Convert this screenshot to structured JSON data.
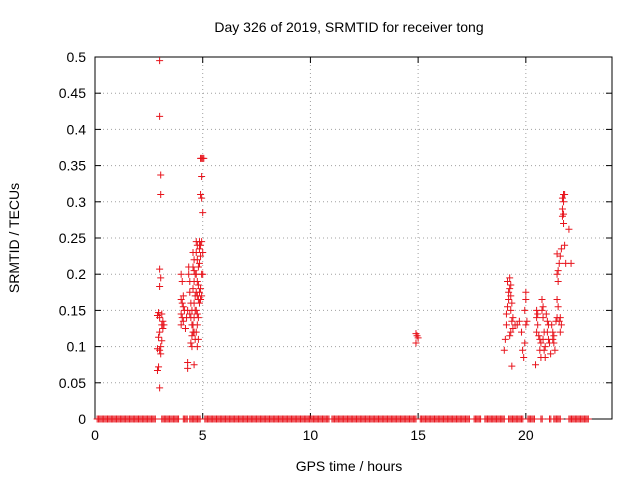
{
  "chart_data": {
    "type": "scatter",
    "title": "Day 326 of 2019, SRMTID for receiver tong",
    "xlabel": "GPS time / hours",
    "ylabel": "SRMTID / TECUs",
    "xlim": [
      0,
      24
    ],
    "ylim": [
      0,
      0.5
    ],
    "xticks": [
      0,
      5,
      10,
      15,
      20
    ],
    "xtick_labels": [
      "0",
      "5",
      "10",
      "15",
      "20"
    ],
    "yticks": [
      0,
      0.05,
      0.1,
      0.15,
      0.2,
      0.25,
      0.3,
      0.35,
      0.4,
      0.45,
      0.5
    ],
    "ytick_labels": [
      "0",
      "0.05",
      "0.1",
      "0.15",
      "0.2",
      "0.25",
      "0.3",
      "0.35",
      "0.4",
      "0.45",
      "0.5"
    ],
    "grid": true,
    "marker": "+",
    "marker_color": "#e8141c",
    "zero_segments": [
      [
        0.1,
        2.8
      ],
      [
        3.1,
        3.9
      ],
      [
        4.1,
        4.3
      ],
      [
        4.4,
        4.9
      ],
      [
        5.1,
        10.9
      ],
      [
        11.0,
        14.9
      ],
      [
        15.1,
        17.4
      ],
      [
        17.6,
        17.9
      ],
      [
        18.1,
        19.0
      ],
      [
        19.2,
        19.9
      ],
      [
        20.1,
        20.4
      ],
      [
        20.7,
        20.8
      ],
      [
        21.1,
        21.2
      ],
      [
        21.3,
        21.6
      ],
      [
        22.0,
        22.9
      ]
    ],
    "zero_step": 0.06,
    "series": [
      {
        "name": "SRMTID",
        "points": [
          [
            3.0,
            0.495
          ],
          [
            3.0,
            0.418
          ],
          [
            3.05,
            0.337
          ],
          [
            3.05,
            0.31
          ],
          [
            3.0,
            0.207
          ],
          [
            3.05,
            0.195
          ],
          [
            3.0,
            0.183
          ],
          [
            2.95,
            0.147
          ],
          [
            2.9,
            0.143
          ],
          [
            3.0,
            0.14
          ],
          [
            3.1,
            0.13
          ],
          [
            3.15,
            0.125
          ],
          [
            3.0,
            0.12
          ],
          [
            2.95,
            0.113
          ],
          [
            3.1,
            0.108
          ],
          [
            3.05,
            0.1
          ],
          [
            2.9,
            0.097
          ],
          [
            3.0,
            0.095
          ],
          [
            3.05,
            0.09
          ],
          [
            2.95,
            0.072
          ],
          [
            2.9,
            0.067
          ],
          [
            3.0,
            0.043
          ],
          [
            3.1,
            0.145
          ],
          [
            3.15,
            0.135
          ],
          [
            3.2,
            0.13
          ],
          [
            4.0,
            0.2
          ],
          [
            4.05,
            0.19
          ],
          [
            4.1,
            0.17
          ],
          [
            4.0,
            0.165
          ],
          [
            4.05,
            0.16
          ],
          [
            4.1,
            0.155
          ],
          [
            4.15,
            0.15
          ],
          [
            4.0,
            0.145
          ],
          [
            4.05,
            0.14
          ],
          [
            4.1,
            0.135
          ],
          [
            4.0,
            0.13
          ],
          [
            4.2,
            0.125
          ],
          [
            4.3,
            0.15
          ],
          [
            4.25,
            0.14
          ],
          [
            4.3,
            0.078
          ],
          [
            4.3,
            0.07
          ],
          [
            4.35,
            0.2
          ],
          [
            4.35,
            0.21
          ],
          [
            4.4,
            0.19
          ],
          [
            4.4,
            0.175
          ],
          [
            4.45,
            0.16
          ],
          [
            4.5,
            0.15
          ],
          [
            4.4,
            0.145
          ],
          [
            4.45,
            0.14
          ],
          [
            4.5,
            0.13
          ],
          [
            4.55,
            0.12
          ],
          [
            4.5,
            0.115
          ],
          [
            4.45,
            0.105
          ],
          [
            4.5,
            0.1
          ],
          [
            4.55,
            0.23
          ],
          [
            4.6,
            0.22
          ],
          [
            4.55,
            0.21
          ],
          [
            4.6,
            0.205
          ],
          [
            4.65,
            0.2
          ],
          [
            4.6,
            0.19
          ],
          [
            4.55,
            0.18
          ],
          [
            4.65,
            0.17
          ],
          [
            4.6,
            0.16
          ],
          [
            4.65,
            0.15
          ],
          [
            4.6,
            0.14
          ],
          [
            4.55,
            0.13
          ],
          [
            4.6,
            0.12
          ],
          [
            4.65,
            0.11
          ],
          [
            4.6,
            0.075
          ],
          [
            4.7,
            0.245
          ],
          [
            4.75,
            0.24
          ],
          [
            4.7,
            0.23
          ],
          [
            4.75,
            0.22
          ],
          [
            4.8,
            0.21
          ],
          [
            4.7,
            0.2
          ],
          [
            4.75,
            0.19
          ],
          [
            4.8,
            0.185
          ],
          [
            4.7,
            0.175
          ],
          [
            4.75,
            0.17
          ],
          [
            4.8,
            0.165
          ],
          [
            4.7,
            0.15
          ],
          [
            4.75,
            0.145
          ],
          [
            4.8,
            0.14
          ],
          [
            4.75,
            0.13
          ],
          [
            4.7,
            0.12
          ],
          [
            4.8,
            0.11
          ],
          [
            4.75,
            0.1
          ],
          [
            4.85,
            0.245
          ],
          [
            4.9,
            0.24
          ],
          [
            4.85,
            0.235
          ],
          [
            4.9,
            0.225
          ],
          [
            4.85,
            0.215
          ],
          [
            4.95,
            0.2
          ],
          [
            4.9,
            0.18
          ],
          [
            4.85,
            0.175
          ],
          [
            4.95,
            0.17
          ],
          [
            4.9,
            0.165
          ],
          [
            4.85,
            0.16
          ],
          [
            4.9,
            0.36
          ],
          [
            4.95,
            0.36
          ],
          [
            5.0,
            0.36
          ],
          [
            5.05,
            0.36
          ],
          [
            4.95,
            0.335
          ],
          [
            4.9,
            0.31
          ],
          [
            4.95,
            0.305
          ],
          [
            5.0,
            0.285
          ],
          [
            4.95,
            0.245
          ],
          [
            5.0,
            0.23
          ],
          [
            5.0,
            0.2
          ],
          [
            14.9,
            0.118
          ],
          [
            14.95,
            0.115
          ],
          [
            15.0,
            0.112
          ],
          [
            14.9,
            0.105
          ],
          [
            19.0,
            0.095
          ],
          [
            19.05,
            0.11
          ],
          [
            19.1,
            0.13
          ],
          [
            19.1,
            0.145
          ],
          [
            19.15,
            0.155
          ],
          [
            19.2,
            0.165
          ],
          [
            19.2,
            0.175
          ],
          [
            19.15,
            0.19
          ],
          [
            19.25,
            0.195
          ],
          [
            19.3,
            0.185
          ],
          [
            19.25,
            0.18
          ],
          [
            19.3,
            0.17
          ],
          [
            19.35,
            0.16
          ],
          [
            19.3,
            0.15
          ],
          [
            19.4,
            0.14
          ],
          [
            19.35,
            0.135
          ],
          [
            19.3,
            0.12
          ],
          [
            19.25,
            0.115
          ],
          [
            19.35,
            0.073
          ],
          [
            19.4,
            0.125
          ],
          [
            19.5,
            0.13
          ],
          [
            19.6,
            0.13
          ],
          [
            19.7,
            0.135
          ],
          [
            19.8,
            0.12
          ],
          [
            19.85,
            0.095
          ],
          [
            19.9,
            0.085
          ],
          [
            19.95,
            0.105
          ],
          [
            20.0,
            0.13
          ],
          [
            19.95,
            0.15
          ],
          [
            20.0,
            0.165
          ],
          [
            20.0,
            0.175
          ],
          [
            20.05,
            0.135
          ],
          [
            20.5,
            0.15
          ],
          [
            20.55,
            0.145
          ],
          [
            20.5,
            0.14
          ],
          [
            20.55,
            0.13
          ],
          [
            20.5,
            0.12
          ],
          [
            20.45,
            0.075
          ],
          [
            20.6,
            0.115
          ],
          [
            20.65,
            0.11
          ],
          [
            20.7,
            0.105
          ],
          [
            20.65,
            0.095
          ],
          [
            20.7,
            0.085
          ],
          [
            20.75,
            0.165
          ],
          [
            20.8,
            0.155
          ],
          [
            20.75,
            0.15
          ],
          [
            20.8,
            0.14
          ],
          [
            20.85,
            0.12
          ],
          [
            20.8,
            0.11
          ],
          [
            20.9,
            0.1
          ],
          [
            20.85,
            0.095
          ],
          [
            20.9,
            0.085
          ],
          [
            20.95,
            0.145
          ],
          [
            21.0,
            0.135
          ],
          [
            21.05,
            0.13
          ],
          [
            21.0,
            0.12
          ],
          [
            21.05,
            0.11
          ],
          [
            21.1,
            0.105
          ],
          [
            21.15,
            0.09
          ],
          [
            21.2,
            0.13
          ],
          [
            21.25,
            0.12
          ],
          [
            21.3,
            0.115
          ],
          [
            21.25,
            0.11
          ],
          [
            21.3,
            0.105
          ],
          [
            21.35,
            0.095
          ],
          [
            21.4,
            0.135
          ],
          [
            21.45,
            0.14
          ],
          [
            21.5,
            0.155
          ],
          [
            21.45,
            0.165
          ],
          [
            21.5,
            0.19
          ],
          [
            21.45,
            0.2
          ],
          [
            21.5,
            0.205
          ],
          [
            21.55,
            0.215
          ],
          [
            21.45,
            0.228
          ],
          [
            21.6,
            0.14
          ],
          [
            21.55,
            0.135
          ],
          [
            21.6,
            0.12
          ],
          [
            21.65,
            0.13
          ],
          [
            21.6,
            0.225
          ],
          [
            21.65,
            0.235
          ],
          [
            21.7,
            0.28
          ],
          [
            21.75,
            0.283
          ],
          [
            21.7,
            0.29
          ],
          [
            21.75,
            0.3
          ],
          [
            21.7,
            0.305
          ],
          [
            21.75,
            0.31
          ],
          [
            21.8,
            0.31
          ],
          [
            21.75,
            0.27
          ],
          [
            21.8,
            0.24
          ],
          [
            21.85,
            0.215
          ],
          [
            22.0,
            0.262
          ],
          [
            22.1,
            0.215
          ]
        ]
      }
    ]
  }
}
